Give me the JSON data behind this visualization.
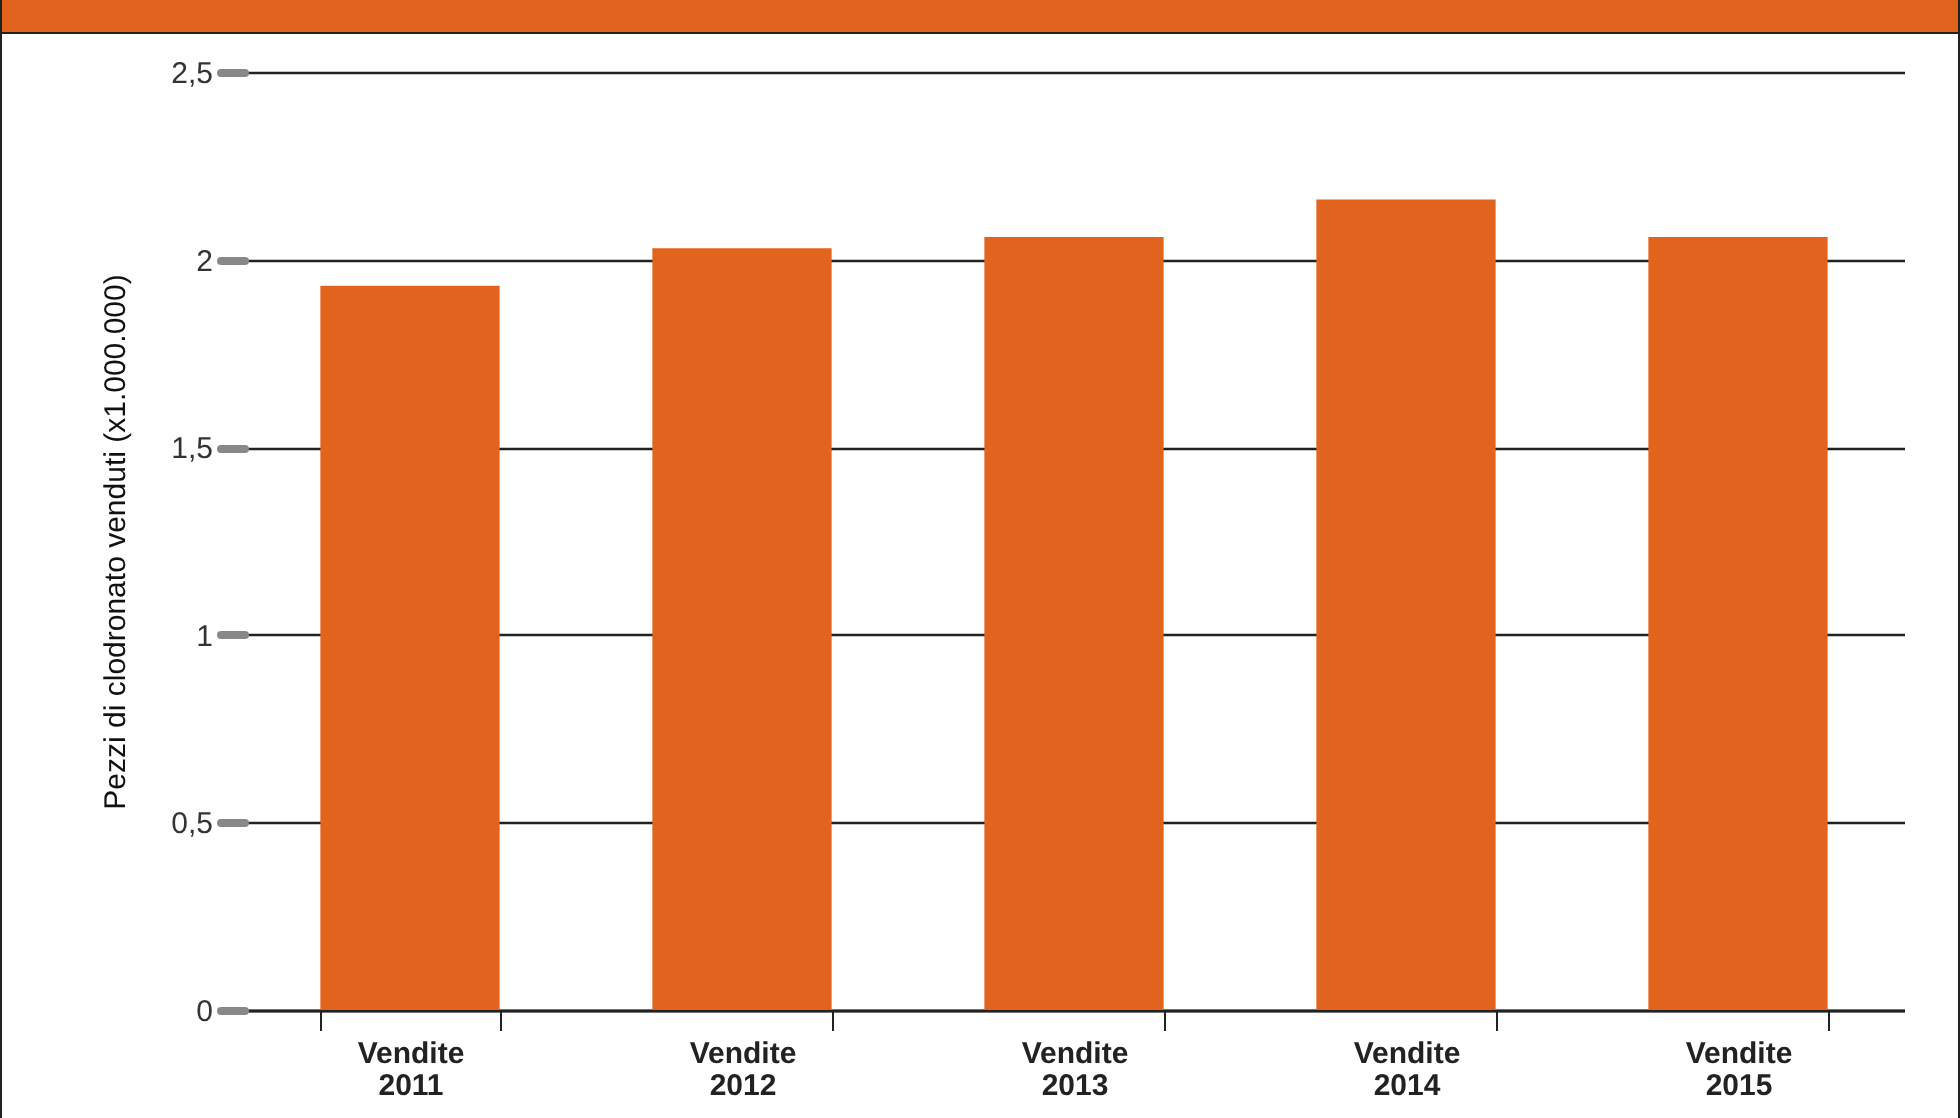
{
  "chart_data": {
    "type": "bar",
    "ylabel": "Pezzi di clodronato venduti (x1.000.000)",
    "categories": [
      "Vendite 2011",
      "Vendite 2012",
      "Vendite 2013",
      "Vendite 2014",
      "Vendite 2015"
    ],
    "values": [
      1.93,
      2.03,
      2.06,
      2.16,
      2.06
    ],
    "color": "#e2631d",
    "ylim": [
      0,
      2.5
    ],
    "yticks": [
      0,
      {
        "value": 0.5,
        "label": "0,5"
      },
      1,
      {
        "value": 1.5,
        "label": "1,5"
      },
      2,
      {
        "value": 2.5,
        "label": "2,5"
      }
    ],
    "grid": "y"
  }
}
